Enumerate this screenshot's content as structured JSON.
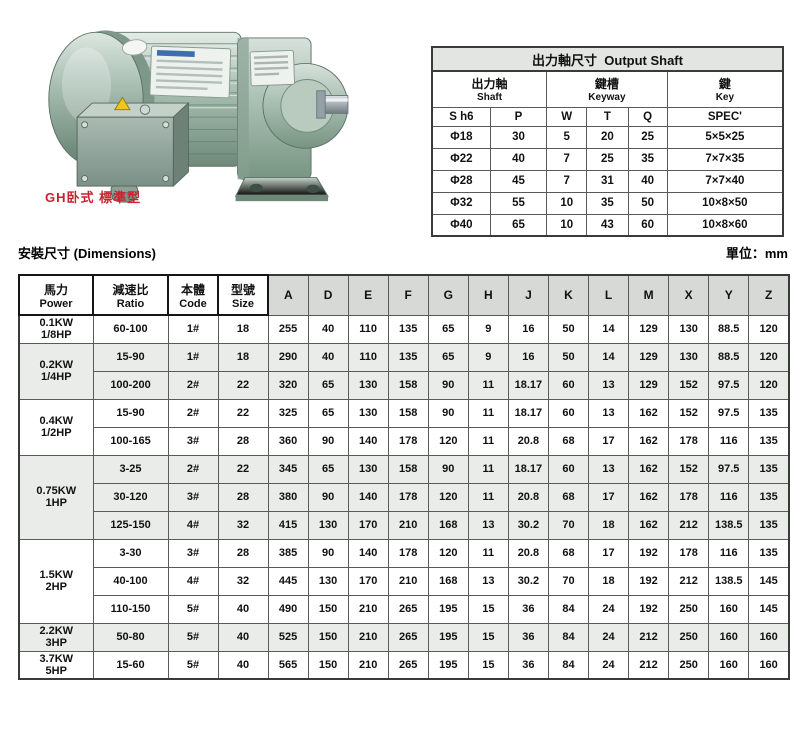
{
  "figure": {
    "caption": "GH卧式 標準型",
    "image_name": "gear-motor-photo"
  },
  "section": {
    "title": "安裝尺寸 (Dimensions)",
    "unit": "單位：mm"
  },
  "output_shaft": {
    "title_zh": "出力軸尺寸",
    "title_en": "Output Shaft",
    "groups": [
      {
        "zh": "出力軸",
        "en": "Shaft"
      },
      {
        "zh": "鍵槽",
        "en": "Keyway"
      },
      {
        "zh": "鍵",
        "en": "Key"
      }
    ],
    "col_headers": [
      "S  h6",
      "P",
      "W",
      "T",
      "Q",
      "SPEC'"
    ],
    "rows": [
      [
        "Φ18",
        "30",
        "5",
        "20",
        "25",
        "5×5×25"
      ],
      [
        "Φ22",
        "40",
        "7",
        "25",
        "35",
        "7×7×35"
      ],
      [
        "Φ28",
        "45",
        "7",
        "31",
        "40",
        "7×7×40"
      ],
      [
        "Φ32",
        "55",
        "10",
        "35",
        "50",
        "10×8×50"
      ],
      [
        "Φ40",
        "65",
        "10",
        "43",
        "60",
        "10×8×60"
      ]
    ]
  },
  "dimensions": {
    "main_headers": [
      {
        "zh": "馬力",
        "en": "Power"
      },
      {
        "zh": "減速比",
        "en": "Ratio"
      },
      {
        "zh": "本體",
        "en": "Code"
      },
      {
        "zh": "型號",
        "en": "Size"
      }
    ],
    "letter_headers": [
      "A",
      "D",
      "E",
      "F",
      "G",
      "H",
      "J",
      "K",
      "L",
      "M",
      "X",
      "Y",
      "Z"
    ],
    "groups": [
      {
        "power_kw": "0.1KW",
        "power_hp": "1/8HP",
        "rows": [
          [
            "60-100",
            "1#",
            "18",
            "255",
            "40",
            "110",
            "135",
            "65",
            "9",
            "16",
            "50",
            "14",
            "129",
            "130",
            "88.5",
            "120"
          ]
        ]
      },
      {
        "power_kw": "0.2KW",
        "power_hp": "1/4HP",
        "rows": [
          [
            "15-90",
            "1#",
            "18",
            "290",
            "40",
            "110",
            "135",
            "65",
            "9",
            "16",
            "50",
            "14",
            "129",
            "130",
            "88.5",
            "120"
          ],
          [
            "100-200",
            "2#",
            "22",
            "320",
            "65",
            "130",
            "158",
            "90",
            "11",
            "18.17",
            "60",
            "13",
            "129",
            "152",
            "97.5",
            "120"
          ]
        ]
      },
      {
        "power_kw": "0.4KW",
        "power_hp": "1/2HP",
        "rows": [
          [
            "15-90",
            "2#",
            "22",
            "325",
            "65",
            "130",
            "158",
            "90",
            "11",
            "18.17",
            "60",
            "13",
            "162",
            "152",
            "97.5",
            "135"
          ],
          [
            "100-165",
            "3#",
            "28",
            "360",
            "90",
            "140",
            "178",
            "120",
            "11",
            "20.8",
            "68",
            "17",
            "162",
            "178",
            "116",
            "135"
          ]
        ]
      },
      {
        "power_kw": "0.75KW",
        "power_hp": "1HP",
        "rows": [
          [
            "3-25",
            "2#",
            "22",
            "345",
            "65",
            "130",
            "158",
            "90",
            "11",
            "18.17",
            "60",
            "13",
            "162",
            "152",
            "97.5",
            "135"
          ],
          [
            "30-120",
            "3#",
            "28",
            "380",
            "90",
            "140",
            "178",
            "120",
            "11",
            "20.8",
            "68",
            "17",
            "162",
            "178",
            "116",
            "135"
          ],
          [
            "125-150",
            "4#",
            "32",
            "415",
            "130",
            "170",
            "210",
            "168",
            "13",
            "30.2",
            "70",
            "18",
            "162",
            "212",
            "138.5",
            "135"
          ]
        ]
      },
      {
        "power_kw": "1.5KW",
        "power_hp": "2HP",
        "rows": [
          [
            "3-30",
            "3#",
            "28",
            "385",
            "90",
            "140",
            "178",
            "120",
            "11",
            "20.8",
            "68",
            "17",
            "192",
            "178",
            "116",
            "135"
          ],
          [
            "40-100",
            "4#",
            "32",
            "445",
            "130",
            "170",
            "210",
            "168",
            "13",
            "30.2",
            "70",
            "18",
            "192",
            "212",
            "138.5",
            "145"
          ],
          [
            "110-150",
            "5#",
            "40",
            "490",
            "150",
            "210",
            "265",
            "195",
            "15",
            "36",
            "84",
            "24",
            "192",
            "250",
            "160",
            "145"
          ]
        ]
      },
      {
        "power_kw": "2.2KW",
        "power_hp": "3HP",
        "rows": [
          [
            "50-80",
            "5#",
            "40",
            "525",
            "150",
            "210",
            "265",
            "195",
            "15",
            "36",
            "84",
            "24",
            "212",
            "250",
            "160",
            "160"
          ]
        ]
      },
      {
        "power_kw": "3.7KW",
        "power_hp": "5HP",
        "rows": [
          [
            "15-60",
            "5#",
            "40",
            "565",
            "150",
            "210",
            "265",
            "195",
            "15",
            "36",
            "84",
            "24",
            "212",
            "250",
            "160",
            "160"
          ]
        ]
      }
    ]
  }
}
